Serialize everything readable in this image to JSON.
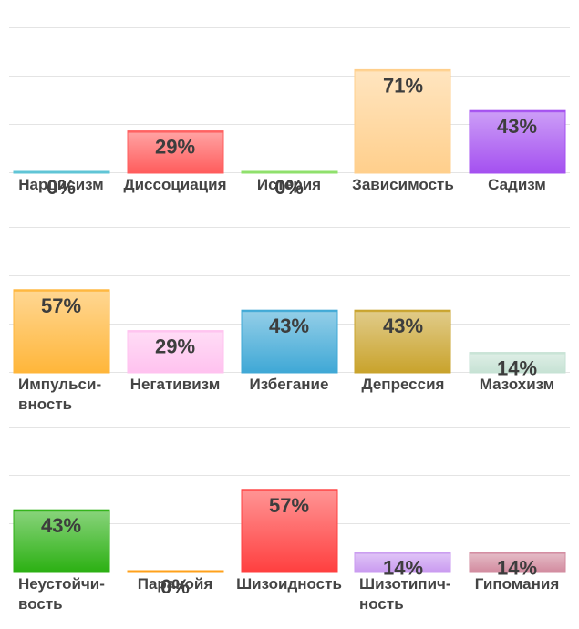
{
  "chart_data": [
    {
      "type": "bar",
      "ylim": [
        0,
        100
      ],
      "grid": true,
      "categories": [
        "Нарцисизм",
        "Диссоциация",
        "Истерия",
        "Зависимость",
        "Садизм"
      ],
      "values": [
        0,
        29,
        0,
        71,
        43
      ],
      "value_labels": [
        "0%",
        "29%",
        "0%",
        "71%",
        "43%"
      ],
      "colors": [
        "#5ec4d6",
        "#ff5c5c",
        "#8ee06a",
        "#ffcf8c",
        "#a450f0"
      ]
    },
    {
      "type": "bar",
      "ylim": [
        0,
        100
      ],
      "grid": true,
      "categories": [
        "Импульси-\nвность",
        "Негативизм",
        "Избегание",
        "Депрессия",
        "Мазохизм"
      ],
      "values": [
        57,
        29,
        43,
        43,
        14
      ],
      "value_labels": [
        "57%",
        "29%",
        "43%",
        "43%",
        "14%"
      ],
      "colors": [
        "#ffb63a",
        "#ffc2ef",
        "#3fa8d6",
        "#c9a32c",
        "#c6e2d4"
      ]
    },
    {
      "type": "bar",
      "ylim": [
        0,
        100
      ],
      "grid": true,
      "categories": [
        "Неустойчи-\nвость",
        "Паранойя",
        "Шизоидность",
        "Шизотипич-\nность",
        "Гипомания"
      ],
      "values": [
        43,
        0,
        57,
        14,
        14
      ],
      "value_labels": [
        "43%",
        "0%",
        "57%",
        "14%",
        "14%"
      ],
      "colors": [
        "#2bb012",
        "#ffa01a",
        "#ff3f3f",
        "#c99af0",
        "#d28a9e"
      ]
    }
  ]
}
